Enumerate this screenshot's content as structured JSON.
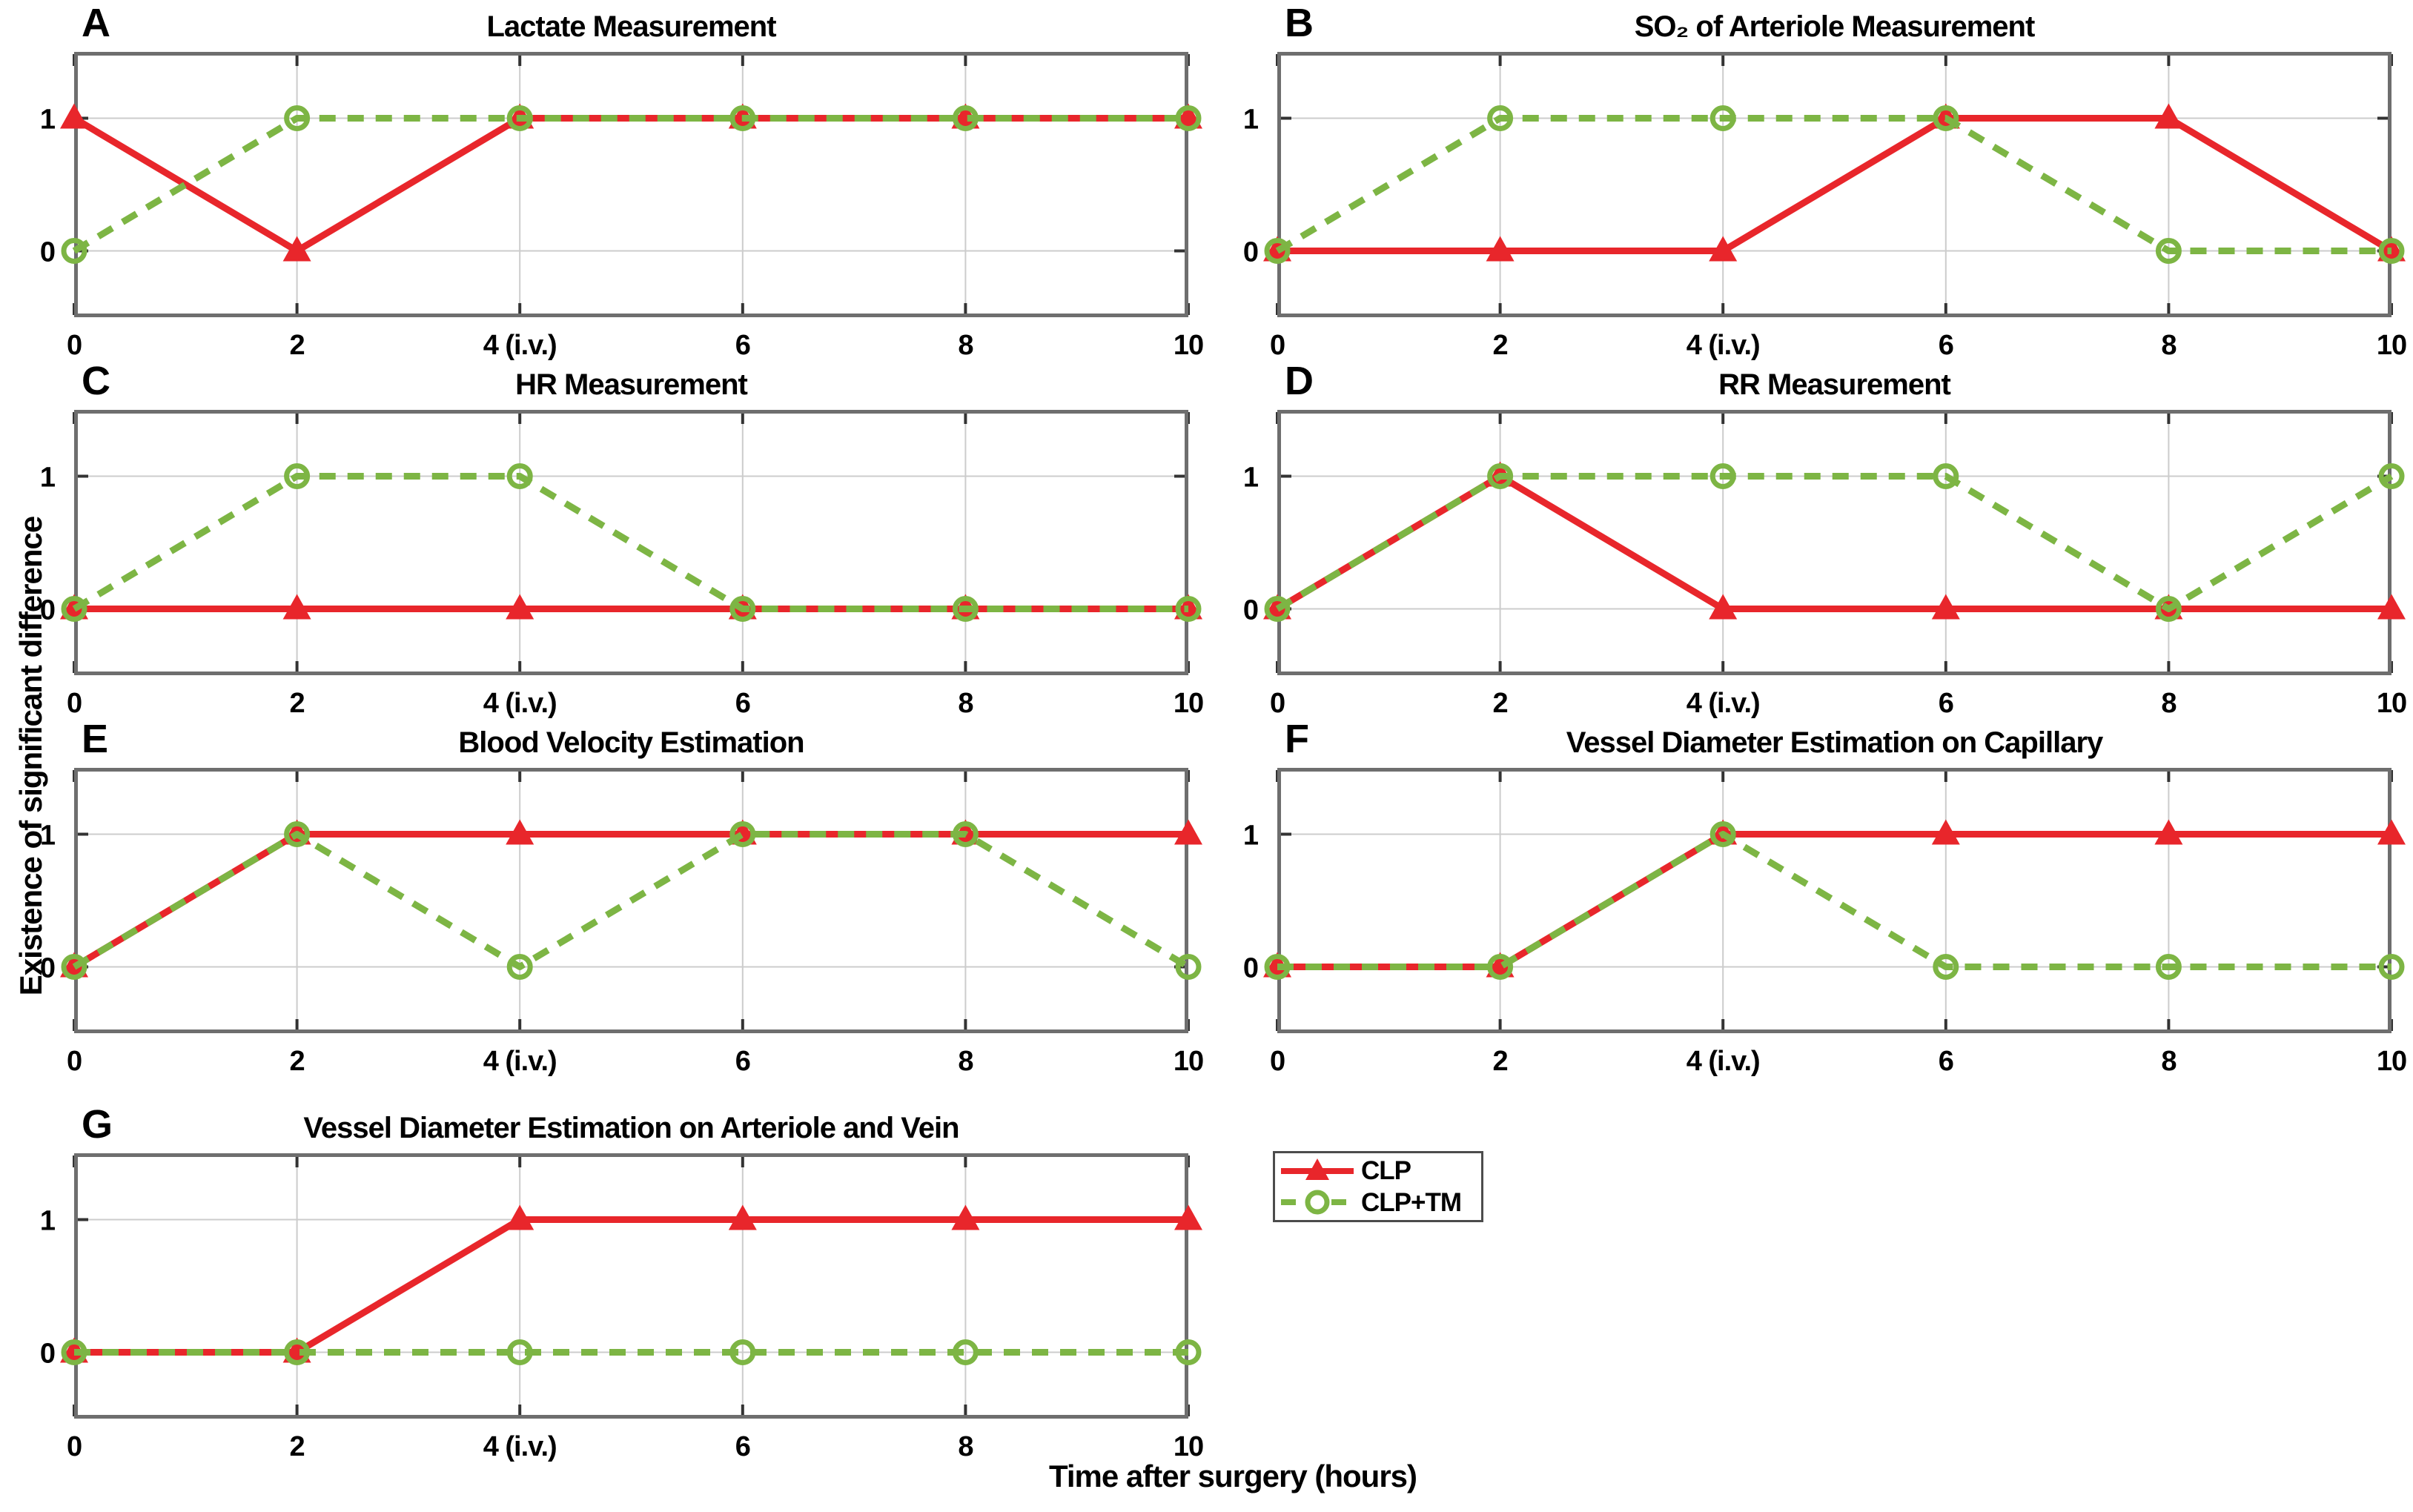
{
  "figure": {
    "xlabel": "Time after surgery (hours)",
    "ylabel": "Existence of significant difference",
    "colors": {
      "clp": "#e8262b",
      "clp_tm": "#7db544",
      "grid": "#cccccc",
      "spine": "#6e6e6e",
      "tick": "#333333"
    }
  },
  "legend": {
    "entries": [
      {
        "label": "CLP",
        "line": "solid",
        "marker": "filled-triangle"
      },
      {
        "label": "CLP+TM",
        "line": "dashed",
        "marker": "open-circle"
      }
    ]
  },
  "chart_data": [
    {
      "type": "line",
      "panel": "A",
      "title": "Lactate Measurement",
      "x": [
        0,
        2,
        4,
        6,
        8,
        10
      ],
      "categories": [
        "0",
        "2",
        "4 (i.v.)",
        "6",
        "8",
        "10"
      ],
      "xlabel": "Time after surgery (hours)",
      "ylabel": "Existence of significant difference",
      "ylim": [
        -0.5,
        1.5
      ],
      "yticks": [
        0,
        1
      ],
      "grid": true,
      "series": [
        {
          "name": "CLP",
          "values": [
            1,
            0,
            1,
            1,
            1,
            1
          ]
        },
        {
          "name": "CLP+TM",
          "values": [
            0,
            1,
            1,
            1,
            1,
            1
          ]
        }
      ]
    },
    {
      "type": "line",
      "panel": "B",
      "title": "SO₂ of Arteriole Measurement",
      "x": [
        0,
        2,
        4,
        6,
        8,
        10
      ],
      "categories": [
        "0",
        "2",
        "4 (i.v.)",
        "6",
        "8",
        "10"
      ],
      "xlabel": "Time after surgery (hours)",
      "ylabel": "Existence of significant difference",
      "ylim": [
        -0.5,
        1.5
      ],
      "yticks": [
        0,
        1
      ],
      "grid": true,
      "series": [
        {
          "name": "CLP",
          "values": [
            0,
            0,
            0,
            1,
            1,
            0
          ]
        },
        {
          "name": "CLP+TM",
          "values": [
            0,
            1,
            1,
            1,
            0,
            0
          ]
        }
      ]
    },
    {
      "type": "line",
      "panel": "C",
      "title": "HR Measurement",
      "x": [
        0,
        2,
        4,
        6,
        8,
        10
      ],
      "categories": [
        "0",
        "2",
        "4 (i.v.)",
        "6",
        "8",
        "10"
      ],
      "xlabel": "Time after surgery (hours)",
      "ylabel": "Existence of significant difference",
      "ylim": [
        -0.5,
        1.5
      ],
      "yticks": [
        0,
        1
      ],
      "grid": true,
      "series": [
        {
          "name": "CLP",
          "values": [
            0,
            0,
            0,
            0,
            0,
            0
          ]
        },
        {
          "name": "CLP+TM",
          "values": [
            0,
            1,
            1,
            0,
            0,
            0
          ]
        }
      ]
    },
    {
      "type": "line",
      "panel": "D",
      "title": "RR Measurement",
      "x": [
        0,
        2,
        4,
        6,
        8,
        10
      ],
      "categories": [
        "0",
        "2",
        "4 (i.v.)",
        "6",
        "8",
        "10"
      ],
      "xlabel": "Time after surgery (hours)",
      "ylabel": "Existence of significant difference",
      "ylim": [
        -0.5,
        1.5
      ],
      "yticks": [
        0,
        1
      ],
      "grid": true,
      "series": [
        {
          "name": "CLP",
          "values": [
            0,
            1,
            0,
            0,
            0,
            0
          ]
        },
        {
          "name": "CLP+TM",
          "values": [
            0,
            1,
            1,
            1,
            0,
            1
          ]
        }
      ]
    },
    {
      "type": "line",
      "panel": "E",
      "title": "Blood Velocity Estimation",
      "x": [
        0,
        2,
        4,
        6,
        8,
        10
      ],
      "categories": [
        "0",
        "2",
        "4 (i.v.)",
        "6",
        "8",
        "10"
      ],
      "xlabel": "Time after surgery (hours)",
      "ylabel": "Existence of significant difference",
      "ylim": [
        -0.5,
        1.5
      ],
      "yticks": [
        0,
        1
      ],
      "grid": true,
      "series": [
        {
          "name": "CLP",
          "values": [
            0,
            1,
            1,
            1,
            1,
            1
          ]
        },
        {
          "name": "CLP+TM",
          "values": [
            0,
            1,
            0,
            1,
            1,
            0
          ]
        }
      ]
    },
    {
      "type": "line",
      "panel": "F",
      "title": "Vessel Diameter Estimation on Capillary",
      "x": [
        0,
        2,
        4,
        6,
        8,
        10
      ],
      "categories": [
        "0",
        "2",
        "4 (i.v.)",
        "6",
        "8",
        "10"
      ],
      "xlabel": "Time after surgery (hours)",
      "ylabel": "Existence of significant difference",
      "ylim": [
        -0.5,
        1.5
      ],
      "yticks": [
        0,
        1
      ],
      "grid": true,
      "series": [
        {
          "name": "CLP",
          "values": [
            0,
            0,
            1,
            1,
            1,
            1
          ]
        },
        {
          "name": "CLP+TM",
          "values": [
            0,
            0,
            1,
            0,
            0,
            0
          ]
        }
      ]
    },
    {
      "type": "line",
      "panel": "G",
      "title": "Vessel Diameter Estimation on Arteriole and Vein",
      "x": [
        0,
        2,
        4,
        6,
        8,
        10
      ],
      "categories": [
        "0",
        "2",
        "4 (i.v.)",
        "6",
        "8",
        "10"
      ],
      "xlabel": "Time after surgery (hours)",
      "ylabel": "Existence of significant difference",
      "ylim": [
        -0.5,
        1.5
      ],
      "yticks": [
        0,
        1
      ],
      "grid": true,
      "series": [
        {
          "name": "CLP",
          "values": [
            0,
            0,
            1,
            1,
            1,
            1
          ]
        },
        {
          "name": "CLP+TM",
          "values": [
            0,
            0,
            0,
            0,
            0,
            0
          ]
        }
      ]
    }
  ]
}
